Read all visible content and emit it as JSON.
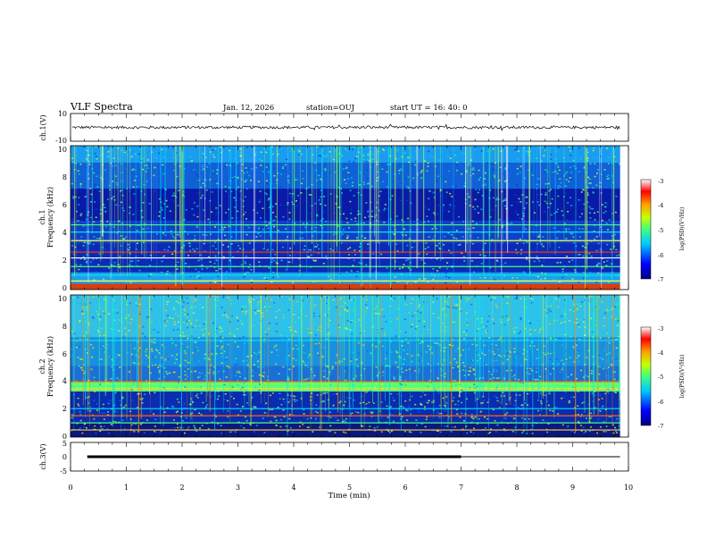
{
  "header": {
    "title": "VLF Spectra",
    "date": "Jan. 12, 2026",
    "station": "station=OUJ",
    "start": "start  UT =   16: 40: 0"
  },
  "colors": {
    "background_low": "#00007f",
    "mid": "#00c8ff",
    "green": "#40ff80",
    "high": "#ff0000"
  },
  "chart_data": [
    {
      "type": "line",
      "ylabel": "ch.1(V)",
      "ylim": [
        -10,
        10
      ],
      "yticks": [
        "10",
        "-10"
      ],
      "trace_level_v": 0,
      "trace_noise_v": 1
    },
    {
      "type": "heatmap",
      "ylabel_top": "ch.1",
      "ylabel": "Frequency  (kHz)",
      "ylim": [
        0,
        10
      ],
      "yticks": [
        "0",
        "2",
        "4",
        "6",
        "8",
        "10"
      ],
      "colorbar": {
        "label": "log(PSD)(V²/Hz)",
        "range": [
          -7,
          -3
        ],
        "ticks": [
          "-3",
          "-4",
          "-5",
          "-6",
          "-7"
        ]
      },
      "bands_khz": [
        0.3,
        0.6,
        1.0,
        1.6,
        2.2,
        2.6,
        3.4,
        4.0,
        4.5
      ]
    },
    {
      "type": "heatmap",
      "ylabel_top": "ch.2",
      "ylabel": "Frequency  (kHz)",
      "ylim": [
        0,
        10
      ],
      "yticks": [
        "0",
        "2",
        "4",
        "6",
        "8",
        "10"
      ],
      "colorbar": {
        "label": "log(PSD)(V²/Hz)",
        "range": [
          -7,
          -3
        ],
        "ticks": [
          "-3",
          "-4",
          "-5",
          "-6",
          "-7"
        ]
      },
      "bands_khz": [
        0.5,
        1.0,
        1.5,
        2.0,
        3.4,
        3.6,
        3.9,
        6.8
      ]
    },
    {
      "type": "line",
      "ylabel": "ch.3(V)",
      "ylim": [
        -5,
        5
      ],
      "yticks": [
        "5",
        "0",
        "-5"
      ],
      "segments": [
        {
          "x_start_min": 0.3,
          "x_end_min": 7.0,
          "y_v": 0,
          "weight": "thick"
        },
        {
          "x_start_min": 7.0,
          "x_end_min": 9.85,
          "y_v": 0,
          "weight": "thin"
        }
      ]
    }
  ],
  "xaxis": {
    "label": "Time  (min)",
    "range": [
      0,
      10
    ],
    "ticks": [
      "0",
      "1",
      "2",
      "3",
      "4",
      "5",
      "6",
      "7",
      "8",
      "9",
      "10"
    ],
    "data_end_min": 9.85
  }
}
